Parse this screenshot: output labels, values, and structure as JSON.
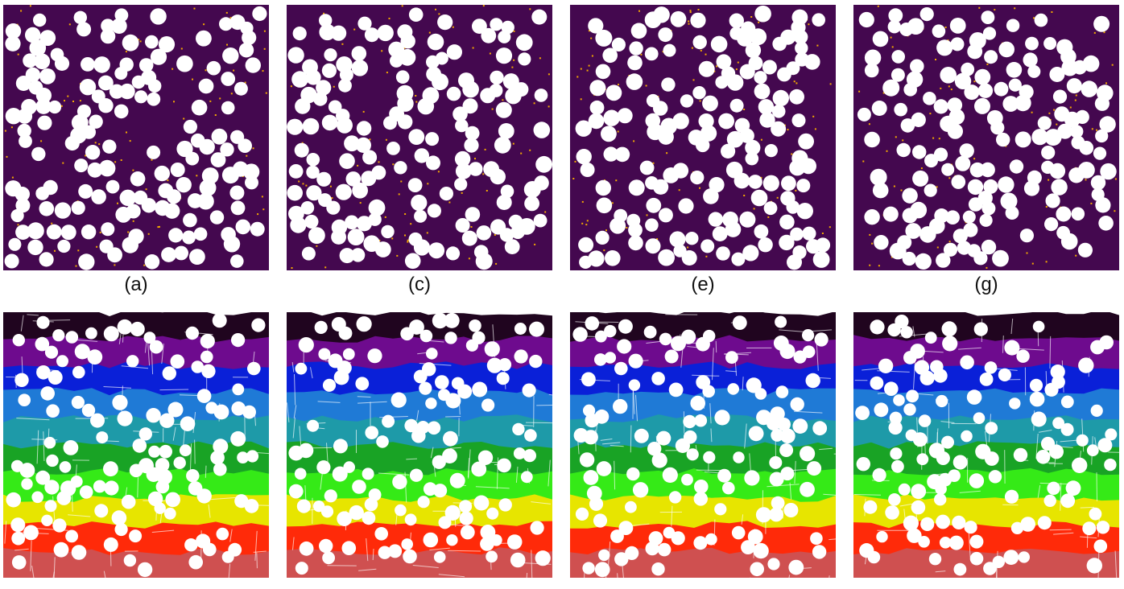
{
  "figure": {
    "captions": [
      "(a)",
      "(c)",
      "(e)",
      "(g)"
    ]
  },
  "colors": {
    "background": "#44084f",
    "particle": "#ffffff",
    "dot": "#f2a900",
    "bands": [
      "#20051f",
      "#6e0b8e",
      "#0a20d8",
      "#1f7ad6",
      "#1e9aa8",
      "#19a325",
      "#35ea17",
      "#e7e500",
      "#ff2a09",
      "#cf5050"
    ]
  }
}
